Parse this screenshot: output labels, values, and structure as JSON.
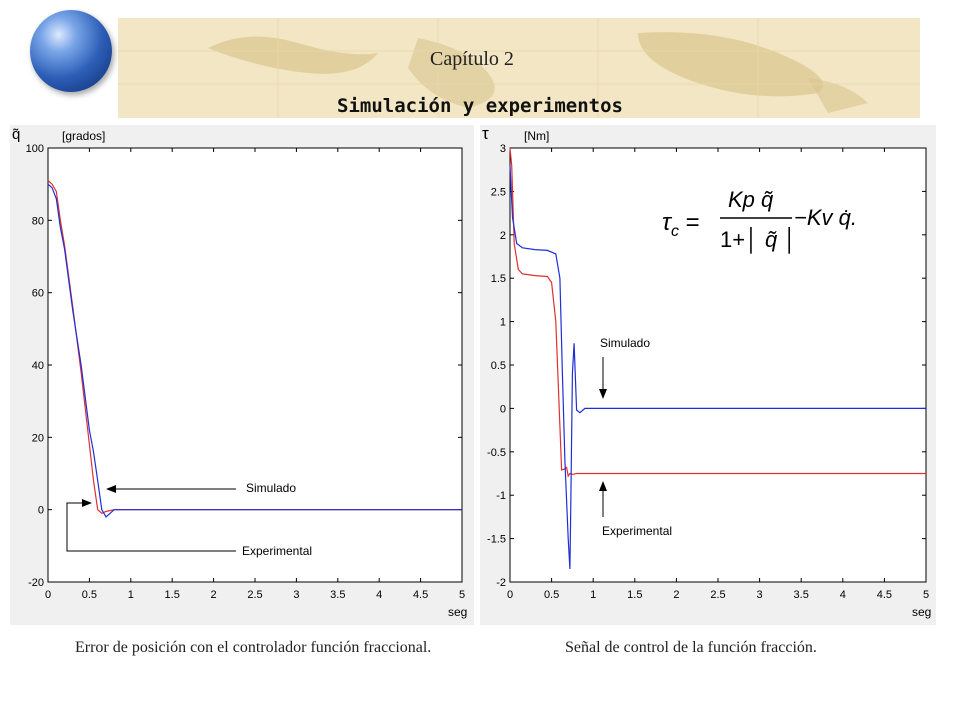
{
  "header": {
    "chapter": "Capítulo 2",
    "title": "Simulación y experimentos"
  },
  "captions": {
    "left": "Error de posición con el controlador función fraccional.",
    "right": "Señal de control de la función fracción."
  },
  "formula": {
    "lhs": "τc",
    "numerator": "Kp q̃",
    "denominator": "1+| q̃ |",
    "tail": "−Kv q̇."
  },
  "chart_data": [
    {
      "type": "line",
      "symbol": "q̃",
      "ylabel": "[grados]",
      "xlabel": "seg",
      "xlim": [
        0,
        5
      ],
      "ylim": [
        -20,
        100
      ],
      "xticks": [
        "0",
        "0.5",
        "1",
        "1.5",
        "2",
        "2.5",
        "3",
        "3.5",
        "4",
        "4.5",
        "5"
      ],
      "yticks": [
        "100",
        "80",
        "60",
        "40",
        "20",
        "0",
        "-20"
      ],
      "series": [
        {
          "name": "Simulado",
          "color": "#1f2fd6",
          "x": [
            0,
            0.05,
            0.1,
            0.15,
            0.2,
            0.3,
            0.4,
            0.5,
            0.55,
            0.6,
            0.65,
            0.7,
            0.75,
            0.8,
            0.9,
            1,
            2,
            3,
            4,
            5
          ],
          "y": [
            90,
            89,
            86,
            78,
            72,
            55,
            40,
            22,
            16,
            8,
            0,
            -2,
            -1,
            0,
            0,
            0,
            0,
            0,
            0,
            0
          ]
        },
        {
          "name": "Experimental",
          "color": "#e03030",
          "x": [
            0,
            0.05,
            0.1,
            0.15,
            0.2,
            0.3,
            0.4,
            0.5,
            0.55,
            0.6,
            0.65,
            0.7,
            0.8,
            1,
            2,
            3,
            4,
            5
          ],
          "y": [
            91,
            90,
            88,
            80,
            73,
            56,
            38,
            18,
            8,
            0,
            -1,
            -0.5,
            0,
            0,
            0,
            0,
            0,
            0
          ]
        }
      ],
      "annotations": [
        "Simulado",
        "Experimental"
      ]
    },
    {
      "type": "line",
      "symbol": "τ",
      "ylabel": "[Nm]",
      "xlabel": "seg",
      "xlim": [
        0,
        5
      ],
      "ylim": [
        -2,
        3
      ],
      "xticks": [
        "0",
        "0.5",
        "1",
        "1.5",
        "2",
        "2.5",
        "3",
        "3.5",
        "4",
        "4.5",
        "5"
      ],
      "yticks": [
        "3",
        "2.5",
        "2",
        "1.5",
        "1",
        "0.5",
        "0",
        "-0.5",
        "-1",
        "-1.5",
        "-2"
      ],
      "series": [
        {
          "name": "Simulado",
          "color": "#1f2fd6",
          "x": [
            0,
            0.03,
            0.08,
            0.15,
            0.3,
            0.45,
            0.55,
            0.6,
            0.63,
            0.66,
            0.7,
            0.72,
            0.73,
            0.75,
            0.77,
            0.8,
            0.84,
            0.9,
            1,
            2,
            3,
            4,
            5
          ],
          "y": [
            2.8,
            2.2,
            1.9,
            1.85,
            1.83,
            1.82,
            1.78,
            1.5,
            0.4,
            -0.6,
            -1.5,
            -1.85,
            -1.2,
            0.4,
            0.75,
            -0.02,
            -0.05,
            0,
            0,
            0,
            0,
            0,
            0
          ]
        },
        {
          "name": "Experimental",
          "color": "#e03030",
          "x": [
            0,
            0.02,
            0.05,
            0.1,
            0.15,
            0.3,
            0.45,
            0.5,
            0.55,
            0.6,
            0.62,
            0.65,
            0.68,
            0.7,
            0.72,
            0.75,
            0.8,
            1,
            2,
            3,
            4,
            5
          ],
          "y": [
            3,
            2.8,
            1.9,
            1.6,
            1.55,
            1.53,
            1.52,
            1.45,
            1.0,
            -0.2,
            -0.71,
            -0.7,
            -0.68,
            -0.78,
            -0.75,
            -0.76,
            -0.75,
            -0.75,
            -0.75,
            -0.75,
            -0.75,
            -0.75
          ]
        }
      ],
      "annotations": [
        "Simulado",
        "Experimental"
      ]
    }
  ]
}
